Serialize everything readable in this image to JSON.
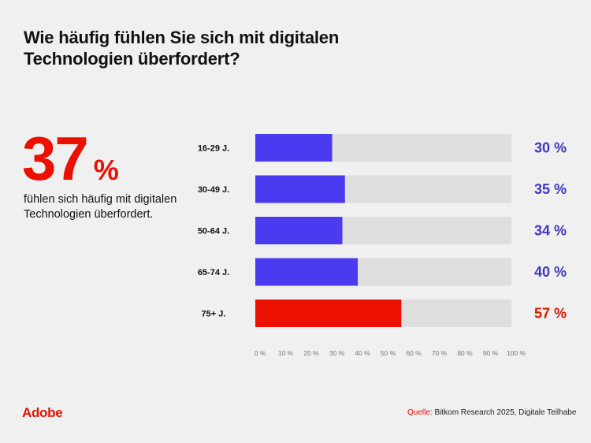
{
  "title": "Wie häufig fühlen Sie sich mit digitalen Technologien überfordert?",
  "highlight": {
    "value": "37",
    "unit": "%",
    "description": "fühlen sich häufig mit digitalen Technologien überfordert."
  },
  "chart_data": {
    "type": "bar",
    "orientation": "horizontal",
    "title": "Wie häufig fühlen Sie sich mit digitalen Technologien überfordert?",
    "categories": [
      "16-29 J.",
      "30-49 J.",
      "50-64 J.",
      "65-74 J.",
      "75+ J."
    ],
    "values": [
      30,
      35,
      34,
      40,
      57
    ],
    "value_labels": [
      "30 %",
      "35 %",
      "34 %",
      "40 %",
      "57 %"
    ],
    "highlight_index": 4,
    "xlim": [
      0,
      100
    ],
    "xticks": [
      0,
      10,
      20,
      30,
      40,
      50,
      60,
      70,
      80,
      90,
      100
    ],
    "xtick_labels": [
      "0 %",
      "10 %",
      "20 %",
      "30 %",
      "40 %",
      "50 %",
      "60 %",
      "70 %",
      "80 %",
      "90 %",
      "100 %"
    ],
    "xlabel": "",
    "ylabel": "",
    "grid": false,
    "colors": {
      "bar": "#4a3af0",
      "highlight": "#eb1000",
      "track": "#dedede",
      "value_text": "#3f37c9",
      "highlight_text": "#d81900"
    }
  },
  "footer": {
    "logo": "Adobe",
    "source_label": "Quelle:",
    "source_text": " Bitkom Research 2025, Digitale Teilhabe"
  }
}
